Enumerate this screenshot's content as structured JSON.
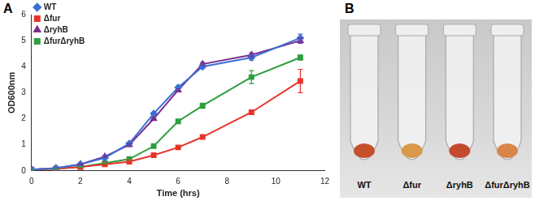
{
  "chart_data": {
    "type": "line",
    "x_label": "Time (hrs)",
    "y_label": "OD600nm",
    "x": [
      0,
      1,
      2,
      3,
      4,
      5,
      6,
      7,
      9,
      11
    ],
    "series": [
      {
        "name": "WT",
        "color": "#3b6fd4",
        "marker": "diamond",
        "values": [
          0.05,
          0.1,
          0.25,
          0.5,
          1.05,
          2.2,
          3.2,
          4.0,
          4.35,
          5.1
        ],
        "errors": [
          0.01,
          0.01,
          0.02,
          0.03,
          0.04,
          0.05,
          0.05,
          0.06,
          0.1,
          0.15
        ]
      },
      {
        "name": "Δfur",
        "color": "#e8342a",
        "marker": "square",
        "values": [
          0.05,
          0.08,
          0.15,
          0.25,
          0.35,
          0.6,
          0.9,
          1.3,
          2.25,
          3.45
        ],
        "errors": [
          0.01,
          0.01,
          0.01,
          0.02,
          0.02,
          0.03,
          0.04,
          0.05,
          0.08,
          0.45
        ]
      },
      {
        "name": "ΔryhB",
        "color": "#7a2e8e",
        "marker": "triangle",
        "values": [
          0.05,
          0.1,
          0.25,
          0.55,
          1.0,
          2.0,
          3.1,
          4.1,
          4.45,
          5.0
        ],
        "errors": [
          0.01,
          0.01,
          0.02,
          0.03,
          0.04,
          0.05,
          0.05,
          0.06,
          0.08,
          0.1
        ]
      },
      {
        "name": "ΔfurΔryhB",
        "color": "#2e9e3e",
        "marker": "square",
        "values": [
          0.05,
          0.08,
          0.15,
          0.3,
          0.45,
          0.95,
          1.9,
          2.5,
          3.6,
          4.35
        ],
        "errors": [
          0.01,
          0.01,
          0.01,
          0.02,
          0.03,
          0.05,
          0.06,
          0.1,
          0.25,
          0.1
        ]
      }
    ],
    "xlim": [
      0,
      12
    ],
    "xticks": [
      0,
      2,
      4,
      6,
      8,
      10,
      12
    ],
    "ylim": [
      0,
      6
    ],
    "yticks": [
      0,
      1,
      2,
      3,
      4,
      5,
      6
    ],
    "grid": false,
    "legend": "upper left"
  },
  "figure": {
    "panel_labels": [
      "A",
      "B"
    ],
    "photo_labels": [
      "WT",
      "Δfur",
      "ΔryhB",
      "ΔfurΔryhB"
    ]
  }
}
